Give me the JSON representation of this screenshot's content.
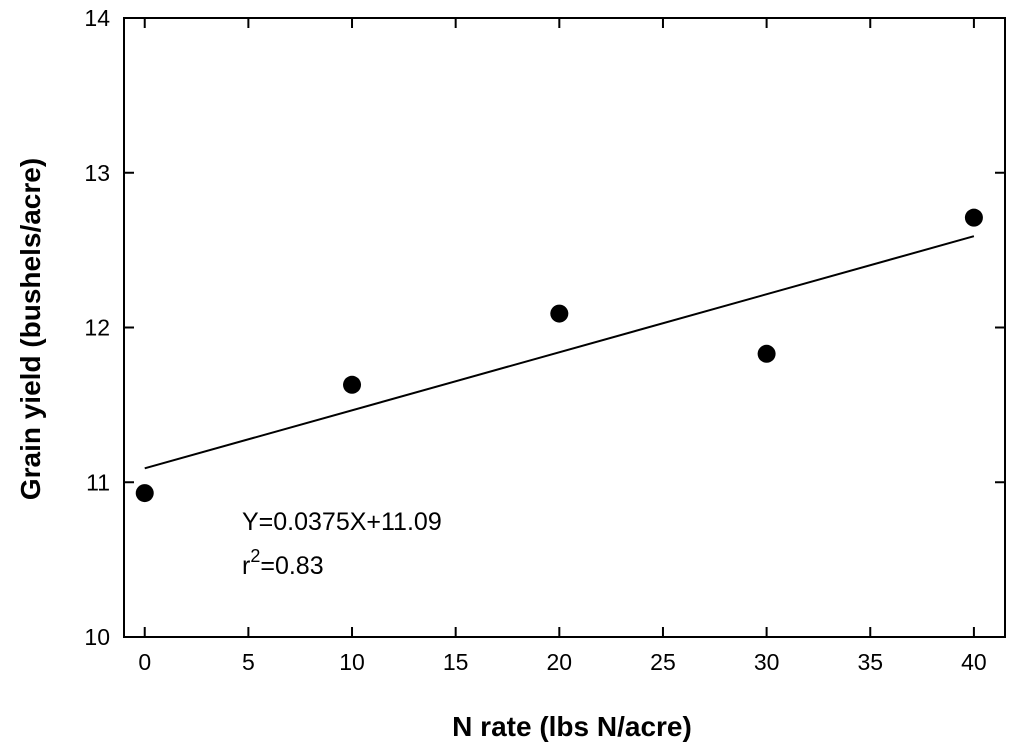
{
  "chart_data": {
    "type": "scatter",
    "xlabel": "N rate (lbs N/acre)",
    "ylabel": "Grain yield (bushels/acre)",
    "xlim": [
      -1,
      41.5
    ],
    "ylim": [
      10,
      14
    ],
    "x_ticks": [
      0,
      5,
      10,
      15,
      20,
      25,
      30,
      35,
      40
    ],
    "y_ticks": [
      10,
      11,
      12,
      13,
      14
    ],
    "x_tick_labels": [
      "0",
      "5",
      "10",
      "15",
      "20",
      "25",
      "30",
      "35",
      "40"
    ],
    "y_tick_labels": [
      "10",
      "11",
      "12",
      "13",
      "14"
    ],
    "grid": false,
    "series": [
      {
        "x": [
          0,
          10,
          20,
          30,
          40
        ],
        "y": [
          10.93,
          11.63,
          12.09,
          11.83,
          12.71
        ],
        "color": "#000000",
        "marker": "filled-circle"
      }
    ],
    "fit_line": {
      "slope": 0.0375,
      "intercept": 11.09,
      "x_range": [
        0,
        40
      ],
      "color": "#000000"
    },
    "annotations": {
      "equation": "Y=0.0375X+11.09",
      "r2_base": "r",
      "r2_sup": "2",
      "r2_value": "=0.83"
    }
  }
}
